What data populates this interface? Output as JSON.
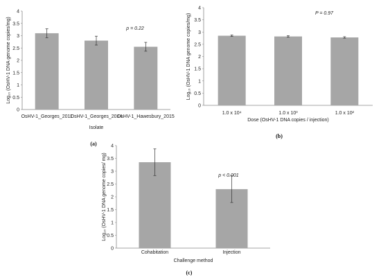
{
  "chart_data": [
    {
      "type": "bar",
      "panel_label": "(a)",
      "categories": [
        "OsHV-1_Georges_2011",
        "OsHV-1_Georges_2014",
        "OsHV-1_Hawesbury_2015"
      ],
      "values": [
        3.1,
        2.8,
        2.55
      ],
      "errors": [
        0.18,
        0.18,
        0.18
      ],
      "xlabel": "Isolate",
      "ylabel": "Log₁₀ (OsHV-1 DNA genome copies/mg)",
      "ylim": [
        0,
        4
      ],
      "yticks": [
        "0",
        "0.5",
        "1",
        "1.5",
        "2",
        "2.5",
        "3",
        "3.5",
        "4"
      ],
      "annotation": "p = 0.22",
      "bar_color": "#a6a6a6"
    },
    {
      "type": "bar",
      "panel_label": "(b)",
      "categories": [
        "1.0 x 10⁴",
        "1.0 x 10³",
        "1.0 x 10²"
      ],
      "values": [
        2.85,
        2.82,
        2.78
      ],
      "errors": [
        0.03,
        0.03,
        0.03
      ],
      "xlabel": "Dose (OsHV-1 DNA copies / injection)",
      "ylabel": "Log₁₀ (OsHV-1 DNA genome copies/mg)",
      "ylim": [
        0,
        4
      ],
      "yticks": [
        "0",
        "0.5",
        "1",
        "1.5",
        "2",
        "2.5",
        "3",
        "3.5",
        "4"
      ],
      "annotation": "P = 0.97",
      "bar_color": "#a6a6a6"
    },
    {
      "type": "bar",
      "panel_label": "(c)",
      "categories": [
        "Cohabitation",
        "Injection"
      ],
      "values": [
        3.35,
        2.3
      ],
      "errors": [
        0.52,
        0.52
      ],
      "xlabel": "Challenge method",
      "ylabel": "Log₁₀ (OsHV-1 DNA genome copies/ mg)",
      "ylim": [
        0,
        4
      ],
      "yticks": [
        "0",
        "0.5",
        "1",
        "1.5",
        "2",
        "2.5",
        "3",
        "3.5",
        "4"
      ],
      "annotation": "p < 0.001",
      "bar_color": "#a6a6a6"
    }
  ]
}
